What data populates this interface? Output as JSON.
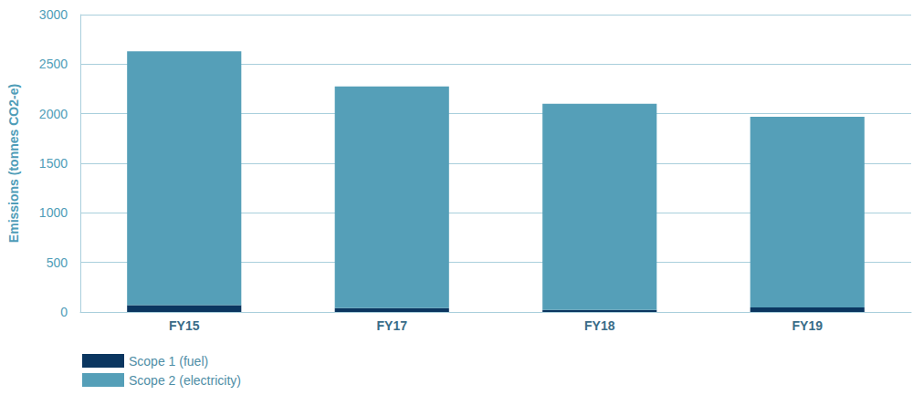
{
  "chart_data": {
    "type": "bar",
    "y_label": "Emissions (tonnes CO2-e)",
    "categories": [
      "FY15",
      "FY17",
      "FY18",
      "FY19"
    ],
    "series": [
      {
        "name": "Scope 1 (fuel)",
        "color": "#0b3660",
        "values": [
          70,
          40,
          20,
          45
        ]
      },
      {
        "name": "Scope 2 (electricity)",
        "color": "#559fb8",
        "values": [
          2560,
          2235,
          2080,
          1925
        ]
      }
    ],
    "stacked": true,
    "ylim": [
      0,
      3000
    ],
    "yticks": [
      0,
      500,
      1000,
      1500,
      2000,
      2500,
      3000
    ],
    "grid": true,
    "legend": "bottom-left"
  }
}
